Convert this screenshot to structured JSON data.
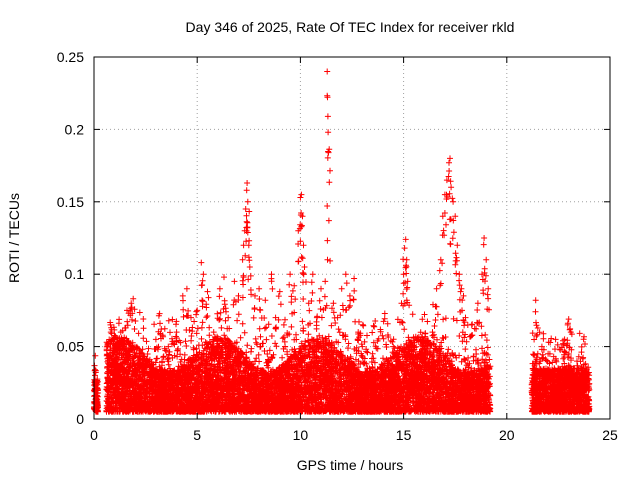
{
  "chart_data": {
    "type": "scatter",
    "title": "Day 346 of 2025, Rate Of TEC Index for receiver rkld",
    "xlabel": "GPS time / hours",
    "ylabel": "ROTI / TECUs",
    "xlim": [
      0,
      25
    ],
    "ylim": [
      0,
      0.25
    ],
    "x_ticks": [
      0,
      5,
      10,
      15,
      20,
      25
    ],
    "x_tick_labels": [
      "0",
      "5",
      "10",
      "15",
      "20",
      "25"
    ],
    "y_ticks": [
      0,
      0.05,
      0.1,
      0.15,
      0.2,
      0.25
    ],
    "y_tick_labels": [
      "0",
      "0.05",
      "0.1",
      "0.15",
      "0.2",
      "0.25"
    ],
    "grid": true,
    "marker": "plus",
    "marker_color": "#ff0000",
    "data_coverage_hours": [
      [
        0,
        0.2
      ],
      [
        0.6,
        19.2
      ],
      [
        21.2,
        24
      ]
    ],
    "series": [
      {
        "points": [
          [
            0.05,
            0.034
          ],
          [
            0.1,
            0.02
          ],
          [
            0.1,
            0.012
          ],
          [
            0.15,
            0.016
          ],
          [
            0.8,
            0.065
          ],
          [
            1.0,
            0.055
          ],
          [
            1.3,
            0.06
          ],
          [
            1.6,
            0.075
          ],
          [
            1.8,
            0.08
          ],
          [
            1.9,
            0.083
          ],
          [
            2.2,
            0.045
          ],
          [
            2.5,
            0.04
          ],
          [
            3.0,
            0.055
          ],
          [
            3.2,
            0.066
          ],
          [
            3.6,
            0.05
          ],
          [
            4.0,
            0.06
          ],
          [
            4.3,
            0.085
          ],
          [
            4.5,
            0.09
          ],
          [
            4.7,
            0.07
          ],
          [
            5.0,
            0.075
          ],
          [
            5.2,
            0.108
          ],
          [
            5.3,
            0.1
          ],
          [
            5.5,
            0.088
          ],
          [
            5.8,
            0.06
          ],
          [
            6.1,
            0.09
          ],
          [
            6.3,
            0.098
          ],
          [
            6.5,
            0.07
          ],
          [
            6.8,
            0.095
          ],
          [
            7.0,
            0.085
          ],
          [
            7.2,
            0.11
          ],
          [
            7.3,
            0.13
          ],
          [
            7.35,
            0.145
          ],
          [
            7.4,
            0.158
          ],
          [
            7.42,
            0.163
          ],
          [
            7.45,
            0.15
          ],
          [
            7.5,
            0.12
          ],
          [
            7.55,
            0.105
          ],
          [
            7.8,
            0.085
          ],
          [
            8.0,
            0.09
          ],
          [
            8.3,
            0.082
          ],
          [
            8.6,
            0.1
          ],
          [
            8.8,
            0.07
          ],
          [
            9.0,
            0.088
          ],
          [
            9.2,
            0.065
          ],
          [
            9.5,
            0.1
          ],
          [
            9.7,
            0.092
          ],
          [
            9.9,
            0.13
          ],
          [
            10.0,
            0.153
          ],
          [
            10.05,
            0.155
          ],
          [
            10.1,
            0.14
          ],
          [
            10.15,
            0.12
          ],
          [
            10.2,
            0.105
          ],
          [
            10.4,
            0.08
          ],
          [
            10.6,
            0.1
          ],
          [
            10.8,
            0.07
          ],
          [
            11.0,
            0.09
          ],
          [
            11.2,
            0.095
          ],
          [
            11.3,
            0.24
          ],
          [
            11.33,
            0.209
          ],
          [
            11.36,
            0.184
          ],
          [
            11.38,
            0.137
          ],
          [
            11.6,
            0.08
          ],
          [
            11.8,
            0.07
          ],
          [
            12.0,
            0.09
          ],
          [
            12.2,
            0.1
          ],
          [
            12.4,
            0.085
          ],
          [
            12.6,
            0.097
          ],
          [
            12.8,
            0.06
          ],
          [
            13.0,
            0.05
          ],
          [
            13.5,
            0.045
          ],
          [
            14.0,
            0.042
          ],
          [
            14.5,
            0.05
          ],
          [
            14.9,
            0.08
          ],
          [
            15.0,
            0.1
          ],
          [
            15.05,
            0.118
          ],
          [
            15.1,
            0.124
          ],
          [
            15.15,
            0.11
          ],
          [
            15.2,
            0.095
          ],
          [
            15.5,
            0.05
          ],
          [
            16.0,
            0.05
          ],
          [
            16.4,
            0.06
          ],
          [
            16.6,
            0.09
          ],
          [
            16.8,
            0.11
          ],
          [
            16.9,
            0.14
          ],
          [
            17.0,
            0.155
          ],
          [
            17.1,
            0.165
          ],
          [
            17.2,
            0.177
          ],
          [
            17.25,
            0.18
          ],
          [
            17.3,
            0.16
          ],
          [
            17.4,
            0.15
          ],
          [
            17.5,
            0.14
          ],
          [
            17.6,
            0.12
          ],
          [
            17.7,
            0.1
          ],
          [
            17.8,
            0.09
          ],
          [
            17.9,
            0.085
          ],
          [
            18.0,
            0.07
          ],
          [
            18.3,
            0.065
          ],
          [
            18.6,
            0.08
          ],
          [
            18.8,
            0.1
          ],
          [
            18.9,
            0.125
          ],
          [
            19.0,
            0.11
          ],
          [
            19.1,
            0.09
          ],
          [
            21.4,
            0.082
          ],
          [
            21.5,
            0.045
          ],
          [
            21.7,
            0.05
          ],
          [
            22.0,
            0.045
          ],
          [
            22.3,
            0.035
          ],
          [
            22.5,
            0.03
          ],
          [
            22.8,
            0.055
          ],
          [
            22.95,
            0.065
          ],
          [
            23.0,
            0.069
          ],
          [
            23.1,
            0.06
          ],
          [
            23.4,
            0.04
          ],
          [
            23.7,
            0.035
          ]
        ]
      }
    ]
  }
}
